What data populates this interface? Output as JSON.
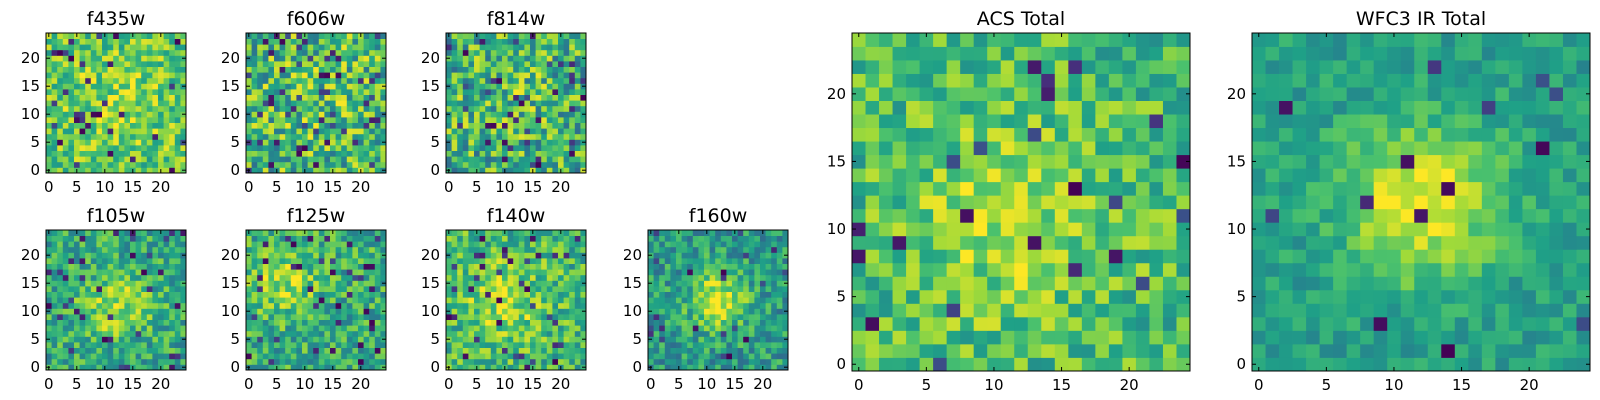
{
  "figure": {
    "colormap": "viridis",
    "colormap_stops": [
      "#440154",
      "#46327e",
      "#365c8d",
      "#277f8e",
      "#1fa187",
      "#4ac16d",
      "#a0da39",
      "#fde725"
    ]
  },
  "chart_data": [
    {
      "type": "heatmap",
      "title": "f435w",
      "grid_size": 25,
      "x_ticks": [
        0,
        5,
        10,
        15,
        20
      ],
      "y_ticks": [
        0,
        5,
        10,
        15,
        20
      ],
      "xlim": [
        -0.5,
        24.5
      ],
      "ylim": [
        -0.5,
        24.5
      ],
      "pattern": {
        "seed": 11,
        "base": 0.72,
        "center": [
          12,
          12
        ],
        "peak": 0.1,
        "width": 8,
        "noise": 0.22,
        "dark_fraction": 0.05
      }
    },
    {
      "type": "heatmap",
      "title": "f606w",
      "grid_size": 25,
      "x_ticks": [
        0,
        5,
        10,
        15,
        20
      ],
      "y_ticks": [
        0,
        5,
        10,
        15,
        20
      ],
      "xlim": [
        -0.5,
        24.5
      ],
      "ylim": [
        -0.5,
        24.5
      ],
      "pattern": {
        "seed": 23,
        "base": 0.66,
        "center": [
          12,
          12
        ],
        "peak": 0.05,
        "width": 8,
        "noise": 0.3,
        "dark_fraction": 0.07
      }
    },
    {
      "type": "heatmap",
      "title": "f814w",
      "grid_size": 25,
      "x_ticks": [
        0,
        5,
        10,
        15,
        20
      ],
      "y_ticks": [
        0,
        5,
        10,
        15,
        20
      ],
      "xlim": [
        -0.5,
        24.5
      ],
      "ylim": [
        -0.5,
        24.5
      ],
      "pattern": {
        "seed": 37,
        "base": 0.62,
        "center": [
          12,
          12
        ],
        "peak": 0.08,
        "width": 8,
        "noise": 0.3,
        "dark_fraction": 0.07
      }
    },
    {
      "type": "heatmap",
      "title": "f105w",
      "grid_size": 25,
      "x_ticks": [
        0,
        5,
        10,
        15,
        20
      ],
      "y_ticks": [
        0,
        5,
        10,
        15,
        20
      ],
      "xlim": [
        -0.5,
        24.5
      ],
      "ylim": [
        -0.5,
        24.5
      ],
      "pattern": {
        "seed": 41,
        "base": 0.6,
        "center": [
          12,
          11
        ],
        "peak": 0.28,
        "width": 4,
        "noise": 0.22,
        "dark_fraction": 0.05
      }
    },
    {
      "type": "heatmap",
      "title": "f125w",
      "grid_size": 25,
      "x_ticks": [
        0,
        5,
        10,
        15,
        20
      ],
      "y_ticks": [
        0,
        5,
        10,
        15,
        20
      ],
      "xlim": [
        -0.5,
        24.5
      ],
      "ylim": [
        -0.5,
        24.5
      ],
      "pattern": {
        "seed": 53,
        "base": 0.62,
        "center": [
          6,
          15
        ],
        "peak": 0.26,
        "width": 4,
        "noise": 0.22,
        "dark_fraction": 0.06
      }
    },
    {
      "type": "heatmap",
      "title": "f140w",
      "grid_size": 25,
      "x_ticks": [
        0,
        5,
        10,
        15,
        20
      ],
      "y_ticks": [
        0,
        5,
        10,
        15,
        20
      ],
      "xlim": [
        -0.5,
        24.5
      ],
      "ylim": [
        -0.5,
        24.5
      ],
      "pattern": {
        "seed": 67,
        "base": 0.66,
        "center": [
          10,
          12
        ],
        "peak": 0.22,
        "width": 5,
        "noise": 0.22,
        "dark_fraction": 0.05
      }
    },
    {
      "type": "heatmap",
      "title": "f160w",
      "grid_size": 25,
      "x_ticks": [
        0,
        5,
        10,
        15,
        20
      ],
      "y_ticks": [
        0,
        5,
        10,
        15,
        20
      ],
      "xlim": [
        -0.5,
        24.5
      ],
      "ylim": [
        -0.5,
        24.5
      ],
      "pattern": {
        "seed": 79,
        "base": 0.55,
        "center": [
          12,
          12
        ],
        "peak": 0.4,
        "width": 3.5,
        "noise": 0.2,
        "dark_fraction": 0.05
      }
    },
    {
      "type": "heatmap",
      "title": "ACS Total",
      "grid_size": 25,
      "x_ticks": [
        0,
        5,
        10,
        15,
        20
      ],
      "y_ticks": [
        0,
        5,
        10,
        15,
        20
      ],
      "xlim": [
        -0.5,
        24.5
      ],
      "ylim": [
        -0.5,
        24.5
      ],
      "pattern": {
        "seed": 97,
        "base": 0.68,
        "center": [
          11,
          11
        ],
        "peak": 0.22,
        "width": 5,
        "noise": 0.2,
        "dark_fraction": 0.04
      }
    },
    {
      "type": "heatmap",
      "title": "WFC3 IR Total",
      "grid_size": 25,
      "x_ticks": [
        0,
        5,
        10,
        15,
        20
      ],
      "y_ticks": [
        0,
        5,
        10,
        15,
        20
      ],
      "xlim": [
        -0.5,
        24.5
      ],
      "ylim": [
        -0.5,
        24.5
      ],
      "pattern": {
        "seed": 113,
        "base": 0.56,
        "center": [
          12,
          12
        ],
        "peak": 0.44,
        "width": 4,
        "noise": 0.12,
        "dark_fraction": 0.025
      }
    }
  ]
}
